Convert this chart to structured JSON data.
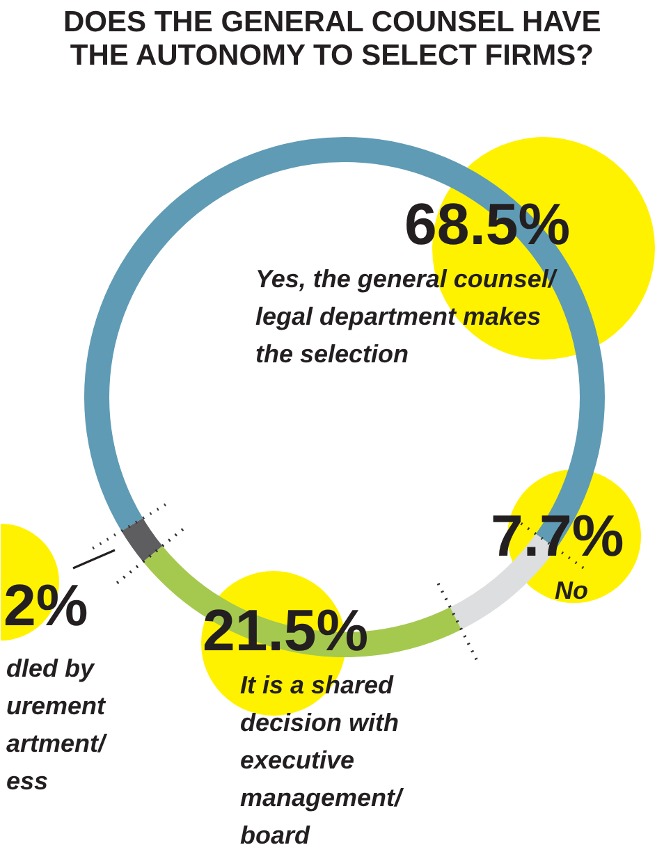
{
  "chart_data": {
    "type": "donut",
    "title": "DOES THE GENERAL COUNSEL HAVE\nTHE AUTONOMY TO SELECT FIRMS?",
    "categories": [
      "Yes, the general counsel/\nlegal department makes\nthe selection",
      "No",
      "It is a shared\ndecision with\nexecutive\nmanagement/\nboard",
      "dled by\nurement\nartment/\ness"
    ],
    "values": [
      68.5,
      7.7,
      21.5,
      2.3
    ],
    "value_labels": [
      "68.5%",
      "7.7%",
      "21.5%",
      "2%"
    ],
    "colors": [
      "#5f9bb5",
      "#dcdee0",
      "#a5c94f",
      "#5e5e60"
    ]
  }
}
